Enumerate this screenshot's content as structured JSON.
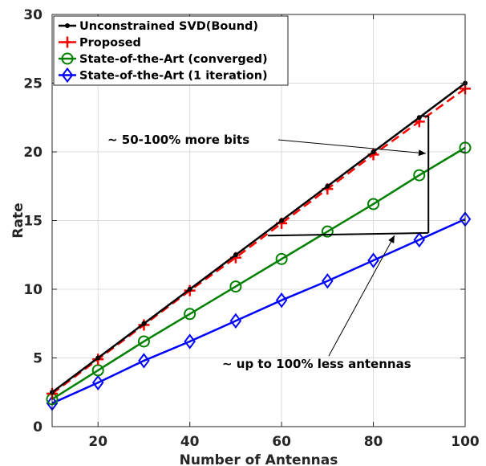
{
  "chart_data": {
    "type": "line",
    "title": "",
    "xlabel": "Number of Antennas",
    "ylabel": "Rate",
    "xlim": [
      10,
      100
    ],
    "ylim": [
      0,
      30
    ],
    "xticks": [
      20,
      40,
      60,
      80,
      100
    ],
    "yticks": [
      0,
      5,
      10,
      15,
      20,
      25,
      30
    ],
    "grid": true,
    "legend_position": "top-left",
    "x": [
      10,
      20,
      30,
      40,
      50,
      60,
      70,
      80,
      90,
      100
    ],
    "series": [
      {
        "name": "Unconstrained SVD(Bound)",
        "color": "#000000",
        "marker": "dot",
        "dash": "solid",
        "values": [
          2.5,
          5.0,
          7.5,
          10.0,
          12.5,
          15.0,
          17.5,
          20.0,
          22.5,
          25.0
        ]
      },
      {
        "name": "Proposed",
        "color": "#ff0000",
        "marker": "plus",
        "dash": "dashed",
        "values": [
          2.4,
          4.9,
          7.4,
          9.9,
          12.3,
          14.8,
          17.3,
          19.8,
          22.2,
          24.6
        ]
      },
      {
        "name": "State-of-the-Art (converged)",
        "color": "#008000",
        "marker": "circle",
        "dash": "solid",
        "values": [
          2.0,
          4.1,
          6.2,
          8.2,
          10.2,
          12.2,
          14.2,
          16.2,
          18.3,
          20.3
        ]
      },
      {
        "name": "State-of-the-Art (1 iteration)",
        "color": "#0000ff",
        "marker": "diamond",
        "dash": "solid",
        "values": [
          1.7,
          3.2,
          4.8,
          6.2,
          7.7,
          9.2,
          10.6,
          12.1,
          13.6,
          15.1
        ]
      }
    ],
    "annotations": [
      {
        "text": "~ 50-100% more bits"
      },
      {
        "text": "~ up to 100% less antennas"
      }
    ]
  }
}
